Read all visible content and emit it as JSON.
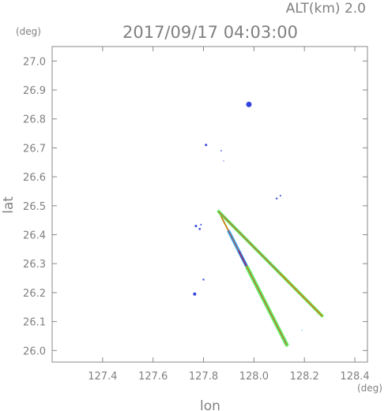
{
  "header": {
    "alt_label": "ALT(km) 2.0",
    "timestamp": "2017/09/17 04:03:00"
  },
  "chart_data": {
    "type": "scatter",
    "title": "2017/09/17 04:03:00",
    "xlabel": "lon",
    "ylabel": "lat",
    "x_unit": "(deg)",
    "y_unit": "(deg)",
    "xlim": [
      127.2,
      128.45
    ],
    "ylim": [
      25.96,
      27.05
    ],
    "x_ticks": [
      "127.4",
      "127.6",
      "127.8",
      "128.0",
      "128.2",
      "128.4"
    ],
    "y_ticks": [
      "26.0",
      "26.1",
      "26.2",
      "26.3",
      "26.4",
      "26.5",
      "26.6",
      "26.7",
      "26.8",
      "26.9",
      "27.0"
    ],
    "grid": false,
    "colors": {
      "axis": "#888888",
      "text": "#808080",
      "echo_blue": "#3344dd",
      "echo_cyan": "#33aaee",
      "echo_green": "#66ee66",
      "echo_yellowgreen": "#aadd33",
      "echo_red": "#dd3311"
    },
    "series": [
      {
        "color_key": "echo_blue",
        "points": [
          {
            "x": 127.98,
            "y": 26.85,
            "r": 3.5
          },
          {
            "x": 127.81,
            "y": 26.71,
            "r": 1.5
          },
          {
            "x": 127.87,
            "y": 26.69,
            "r": 0.8
          },
          {
            "x": 127.88,
            "y": 26.655,
            "r": 0.6
          },
          {
            "x": 128.09,
            "y": 26.525,
            "r": 1.2
          },
          {
            "x": 128.105,
            "y": 26.535,
            "r": 1.0
          },
          {
            "x": 127.77,
            "y": 26.43,
            "r": 1.5
          },
          {
            "x": 127.785,
            "y": 26.42,
            "r": 1.3
          },
          {
            "x": 127.79,
            "y": 26.435,
            "r": 1.0
          },
          {
            "x": 127.8,
            "y": 26.245,
            "r": 1.2
          },
          {
            "x": 127.765,
            "y": 26.195,
            "r": 2.0
          }
        ]
      },
      {
        "color_key": "echo_cyan",
        "points": [
          {
            "x": 128.12,
            "y": 26.035,
            "r": 0.6
          },
          {
            "x": 128.19,
            "y": 26.07,
            "r": 0.6
          }
        ]
      }
    ],
    "rays": [
      {
        "name": "south-ray",
        "from": [
          127.86,
          26.48
        ],
        "to": [
          128.13,
          26.02
        ],
        "segments": [
          {
            "start": 0.0,
            "end": 0.15,
            "color_key": "echo_yellowgreen",
            "width": 2
          },
          {
            "start": 0.15,
            "end": 0.42,
            "color_key": "echo_cyan",
            "width": 4
          },
          {
            "start": 0.3,
            "end": 0.42,
            "color_key": "echo_blue",
            "width": 2.5
          },
          {
            "start": 0.42,
            "end": 1.0,
            "color_key": "echo_green",
            "width": 5
          }
        ]
      },
      {
        "name": "east-ray",
        "from": [
          127.86,
          26.48
        ],
        "to": [
          128.27,
          26.12
        ],
        "segments": [
          {
            "start": 0.0,
            "end": 1.0,
            "color_key": "echo_green",
            "width": 4
          },
          {
            "start": 0.6,
            "end": 1.0,
            "color_key": "echo_yellowgreen",
            "width": 2
          }
        ]
      }
    ]
  }
}
